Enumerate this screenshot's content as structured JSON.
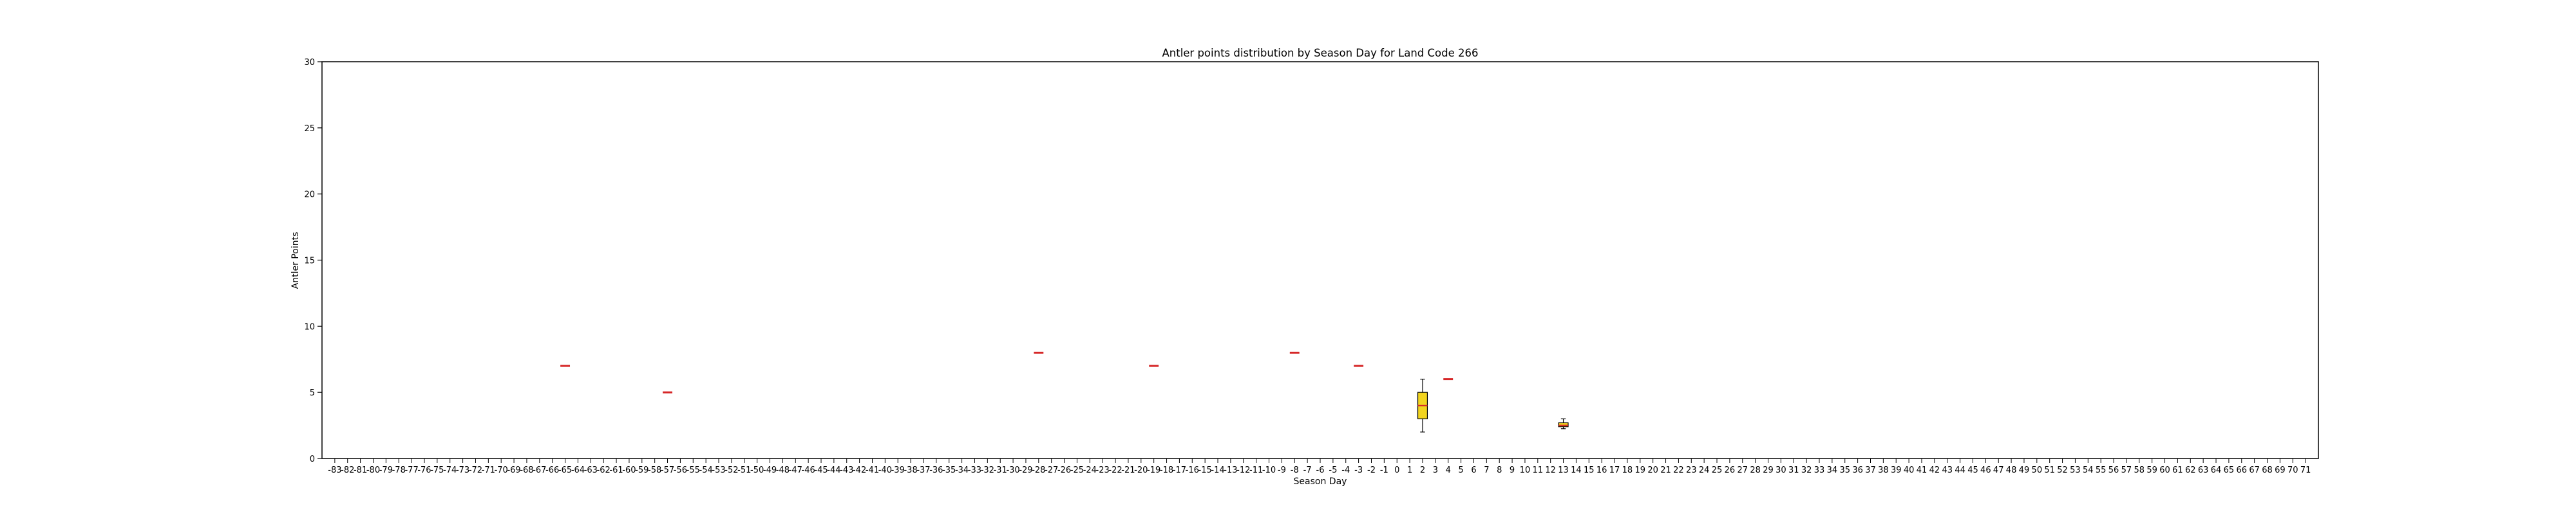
{
  "chart_data": {
    "type": "box",
    "title": "Antler points distribution by Season Day for Land Code 266",
    "xlabel": "Season Day",
    "ylabel": "Antler Points",
    "ylim": [
      0,
      30
    ],
    "yticks": [
      0,
      5,
      10,
      15,
      20,
      25,
      30
    ],
    "x_range": [
      -83,
      71
    ],
    "grid": false,
    "boxes": [
      {
        "x": -65,
        "median": 7
      },
      {
        "x": -57,
        "median": 5
      },
      {
        "x": -28,
        "median": 8
      },
      {
        "x": -19,
        "median": 7
      },
      {
        "x": -8,
        "median": 8
      },
      {
        "x": -3,
        "median": 7
      },
      {
        "x": 2,
        "whisker_low": 2,
        "q1": 3,
        "median": 4,
        "q3": 5,
        "whisker_high": 6
      },
      {
        "x": 4,
        "median": 6
      },
      {
        "x": 13,
        "whisker_low": 2.25,
        "q1": 2.4,
        "median": 2.5,
        "q3": 2.7,
        "whisker_high": 3
      }
    ],
    "colors": {
      "box_fill": "#f2d41f",
      "median": "#d62728",
      "axis": "#000000",
      "whisker": "#000000"
    }
  }
}
